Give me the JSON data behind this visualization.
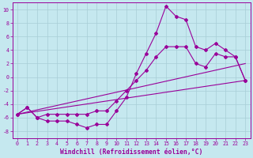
{
  "xlabel": "Windchill (Refroidissement éolien,°C)",
  "xlim": [
    -0.5,
    23.5
  ],
  "ylim": [
    -9,
    11
  ],
  "xticks": [
    0,
    1,
    2,
    3,
    4,
    5,
    6,
    7,
    8,
    9,
    10,
    11,
    12,
    13,
    14,
    15,
    16,
    17,
    18,
    19,
    20,
    21,
    22,
    23
  ],
  "yticks": [
    -8,
    -6,
    -4,
    -2,
    0,
    2,
    4,
    6,
    8,
    10
  ],
  "bg_color": "#c5e8ef",
  "grid_color": "#a8cdd6",
  "line_color": "#990099",
  "line1_x": [
    0,
    1,
    2,
    3,
    4,
    5,
    6,
    7,
    8,
    9,
    10,
    11,
    12,
    13,
    14,
    15,
    16,
    17,
    18,
    19,
    20,
    21,
    22,
    23
  ],
  "line1_y": [
    -5.5,
    -4.5,
    -6.0,
    -6.5,
    -6.5,
    -6.5,
    -7.0,
    -7.5,
    -7.0,
    -7.0,
    -5.0,
    -3.0,
    0.5,
    3.5,
    6.5,
    10.5,
    9.0,
    8.5,
    4.5,
    4.0,
    5.0,
    4.0,
    3.0,
    -0.5
  ],
  "line2_x": [
    0,
    1,
    2,
    3,
    4,
    5,
    6,
    7,
    8,
    9,
    10,
    11,
    12,
    13,
    14,
    15,
    16,
    17,
    18,
    19,
    20,
    21,
    22,
    23
  ],
  "line2_y": [
    -5.5,
    -4.5,
    -6.0,
    -5.5,
    -5.5,
    -5.5,
    -5.5,
    -5.5,
    -5.0,
    -5.0,
    -3.5,
    -2.0,
    -0.5,
    1.0,
    3.0,
    4.5,
    4.5,
    4.5,
    2.0,
    1.5,
    3.5,
    3.0,
    3.0,
    -0.5
  ],
  "line3_x": [
    0,
    23
  ],
  "line3_y": [
    -5.5,
    -0.5
  ],
  "line4_x": [
    0,
    23
  ],
  "line4_y": [
    -5.5,
    2.0
  ],
  "markersize": 2.0,
  "linewidth": 0.8,
  "tick_fontsize": 4.8,
  "xlabel_fontsize": 5.8
}
